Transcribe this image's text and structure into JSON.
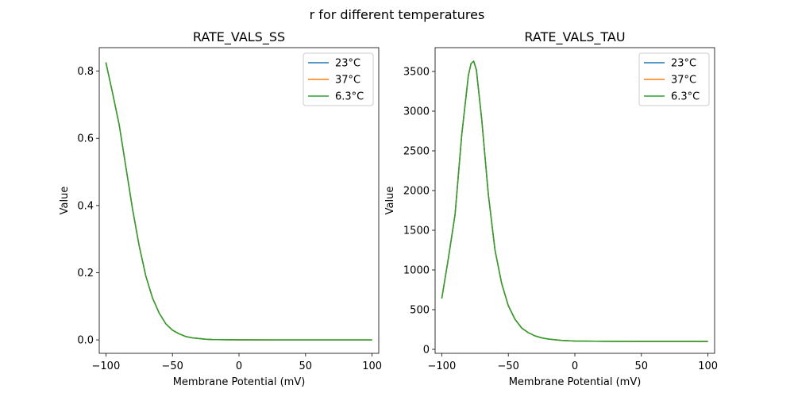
{
  "figure": {
    "suptitle": "r for different temperatures"
  },
  "chart_data": [
    {
      "type": "line",
      "title": "RATE_VALS_SS",
      "xlabel": "Membrane Potential (mV)",
      "ylabel": "Value",
      "xlim": [
        -105,
        105
      ],
      "ylim": [
        -0.04,
        0.87
      ],
      "xticks": [
        -100,
        -50,
        0,
        50,
        100
      ],
      "xtick_labels": [
        "−100",
        "−50",
        "0",
        "50",
        "100"
      ],
      "yticks": [
        0.0,
        0.2,
        0.4,
        0.6,
        0.8
      ],
      "ytick_labels": [
        "0.0",
        "0.2",
        "0.4",
        "0.6",
        "0.8"
      ],
      "legend": "top-right",
      "grid": false,
      "x": [
        -100,
        -95,
        -90,
        -85,
        -80,
        -75,
        -70,
        -65,
        -60,
        -55,
        -50,
        -45,
        -40,
        -35,
        -30,
        -25,
        -20,
        -10,
        0,
        25,
        50,
        75,
        100
      ],
      "series": [
        {
          "name": "23°C",
          "color": "#1f77b4",
          "values": [
            0.826,
            0.735,
            0.64,
            0.515,
            0.39,
            0.28,
            0.19,
            0.125,
            0.08,
            0.048,
            0.029,
            0.018,
            0.01,
            0.006,
            0.004,
            0.002,
            0.001,
            0.0005,
            0.0002,
            0.0,
            0.0,
            0.0,
            0.0
          ]
        },
        {
          "name": "37°C",
          "color": "#ff7f0e",
          "values": [
            0.826,
            0.735,
            0.64,
            0.515,
            0.39,
            0.28,
            0.19,
            0.125,
            0.08,
            0.048,
            0.029,
            0.018,
            0.01,
            0.006,
            0.004,
            0.002,
            0.001,
            0.0005,
            0.0002,
            0.0,
            0.0,
            0.0,
            0.0
          ]
        },
        {
          "name": "6.3°C",
          "color": "#2ca02c",
          "values": [
            0.826,
            0.735,
            0.64,
            0.515,
            0.39,
            0.28,
            0.19,
            0.125,
            0.08,
            0.048,
            0.029,
            0.018,
            0.01,
            0.006,
            0.004,
            0.002,
            0.001,
            0.0005,
            0.0002,
            0.0,
            0.0,
            0.0,
            0.0
          ]
        }
      ]
    },
    {
      "type": "line",
      "title": "RATE_VALS_TAU",
      "xlabel": "Membrane Potential (mV)",
      "ylabel": "Value",
      "xlim": [
        -105,
        105
      ],
      "ylim": [
        -50,
        3800
      ],
      "xticks": [
        -100,
        -50,
        0,
        50,
        100
      ],
      "xtick_labels": [
        "−100",
        "−50",
        "0",
        "50",
        "100"
      ],
      "yticks": [
        0,
        500,
        1000,
        1500,
        2000,
        2500,
        3000,
        3500
      ],
      "ytick_labels": [
        "0",
        "500",
        "1000",
        "1500",
        "2000",
        "2500",
        "3000",
        "3500"
      ],
      "legend": "top-right",
      "grid": false,
      "x": [
        -100,
        -95,
        -90,
        -85,
        -80,
        -78,
        -76,
        -74,
        -70,
        -65,
        -60,
        -55,
        -50,
        -45,
        -40,
        -35,
        -30,
        -25,
        -20,
        -10,
        0,
        25,
        50,
        75,
        100
      ],
      "series": [
        {
          "name": "23°C",
          "color": "#1f77b4",
          "values": [
            640,
            1150,
            1700,
            2700,
            3450,
            3600,
            3630,
            3520,
            2900,
            1950,
            1250,
            830,
            550,
            380,
            270,
            210,
            170,
            145,
            130,
            112,
            105,
            101,
            100,
            100,
            100
          ]
        },
        {
          "name": "37°C",
          "color": "#ff7f0e",
          "values": [
            640,
            1150,
            1700,
            2700,
            3450,
            3600,
            3630,
            3520,
            2900,
            1950,
            1250,
            830,
            550,
            380,
            270,
            210,
            170,
            145,
            130,
            112,
            105,
            101,
            100,
            100,
            100
          ]
        },
        {
          "name": "6.3°C",
          "color": "#2ca02c",
          "values": [
            640,
            1150,
            1700,
            2700,
            3450,
            3600,
            3630,
            3520,
            2900,
            1950,
            1250,
            830,
            550,
            380,
            270,
            210,
            170,
            145,
            130,
            112,
            105,
            101,
            100,
            100,
            100
          ]
        }
      ]
    }
  ]
}
